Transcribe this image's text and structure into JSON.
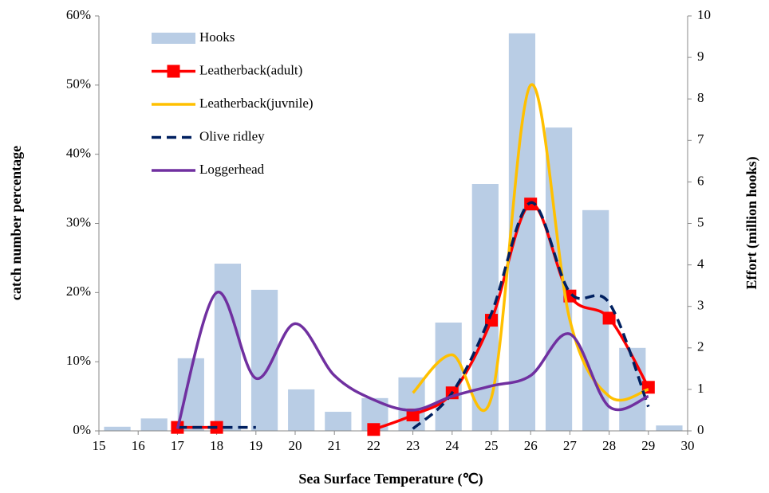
{
  "chart_data": {
    "type": "combo",
    "xlabel": "Sea Surface Temperature (℃)",
    "ylabel": "catch number percentage",
    "y2label": "Effort (million hooks)",
    "xlim": [
      15,
      30
    ],
    "xticks": [
      15,
      16,
      17,
      18,
      19,
      20,
      21,
      22,
      23,
      24,
      25,
      26,
      27,
      28,
      29,
      30
    ],
    "ylim": [
      0,
      60
    ],
    "yticks": [
      {
        "value": 0,
        "label": "0%"
      },
      {
        "value": 10,
        "label": "10%"
      },
      {
        "value": 20,
        "label": "20%"
      },
      {
        "value": 30,
        "label": "30%"
      },
      {
        "value": 40,
        "label": "40%"
      },
      {
        "value": 50,
        "label": "50%"
      },
      {
        "value": 60,
        "label": "60%"
      }
    ],
    "y2lim": [
      0,
      10
    ],
    "y2ticks": [
      0,
      1,
      2,
      3,
      4,
      5,
      6,
      7,
      8,
      9,
      10
    ],
    "legend": "upper left",
    "bars": {
      "name": "Hooks",
      "color": "#b9cde5",
      "axis": "y2",
      "categories": [
        15,
        16,
        17,
        18,
        19,
        20,
        21,
        22,
        23,
        24,
        25,
        26,
        27,
        28,
        29,
        30
      ],
      "values": [
        0.1,
        0.3,
        1.75,
        4.03,
        3.4,
        1.0,
        0.46,
        0.79,
        1.29,
        2.61,
        5.95,
        9.58,
        7.31,
        5.32,
        2.0,
        0.13
      ]
    },
    "x": [
      17,
      18,
      19,
      20,
      21,
      22,
      23,
      24,
      25,
      26,
      27,
      28,
      29
    ],
    "series": [
      {
        "name": "Leatherback(adult)",
        "color": "#ff0000",
        "marker": "square",
        "values": [
          0.5,
          0.5,
          null,
          null,
          null,
          0.2,
          2.3,
          5.5,
          16,
          32.8,
          19.5,
          16.3,
          6.3
        ]
      },
      {
        "name": "Leatherback(juvnile)",
        "color": "#ffc000",
        "values": [
          null,
          null,
          null,
          null,
          null,
          null,
          5.5,
          11,
          4.8,
          50,
          16,
          5,
          6
        ]
      },
      {
        "name": "Olive ridley",
        "color": "#002060",
        "dash": true,
        "values": [
          0.5,
          0.5,
          0.5,
          null,
          null,
          null,
          0.3,
          5.5,
          17,
          33,
          20,
          18.5,
          3.5
        ]
      },
      {
        "name": "Loggerhead",
        "color": "#7030a0",
        "values": [
          0.3,
          20,
          7.6,
          15.5,
          8,
          4.5,
          3,
          5,
          6.5,
          8,
          14,
          3.5,
          5
        ]
      }
    ]
  }
}
